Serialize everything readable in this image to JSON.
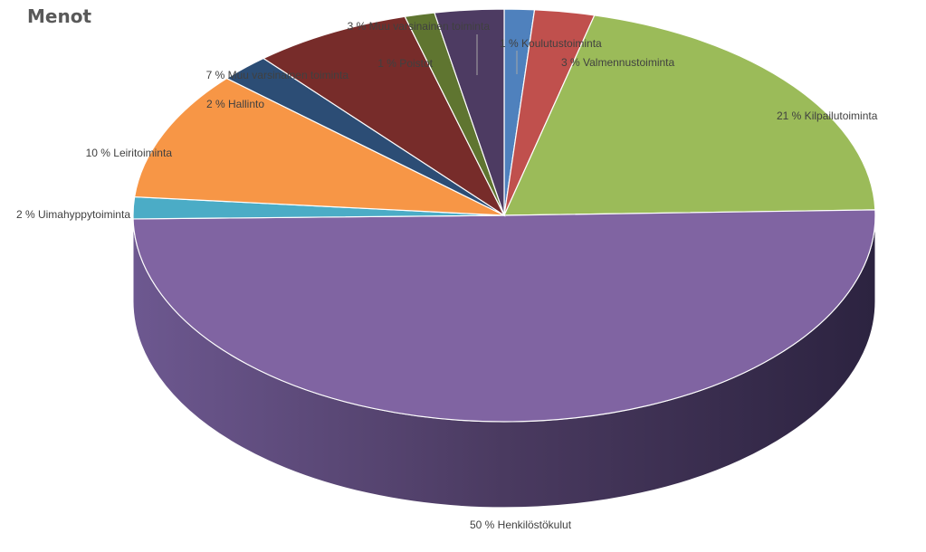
{
  "chart_data": {
    "type": "pie",
    "title": "Menot",
    "style": "3d",
    "slices": [
      {
        "label": "1 % Koulutustoiminta",
        "value": 1.3,
        "color": "#4f81bd"
      },
      {
        "label": "3 % Valmennustoiminta",
        "value": 2.6,
        "color": "#c0504d"
      },
      {
        "label": "21 % Kilpailutoiminta",
        "value": 20.6,
        "color": "#9bbb59"
      },
      {
        "label": "50 % Henkilöstökulut",
        "value": 50.0,
        "color": "#8064a2"
      },
      {
        "label": "2 % Uimahyppytoiminta",
        "value": 1.7,
        "color": "#4bacc6"
      },
      {
        "label": "10 % Leiritoiminta",
        "value": 10.1,
        "color": "#f79646"
      },
      {
        "label": "2 % Hallinto",
        "value": 2.2,
        "color": "#2c4d75"
      },
      {
        "label": "7 % Muu varsinainen toiminta",
        "value": 6.9,
        "color": "#772c2a"
      },
      {
        "label": "1 % Poistot",
        "value": 1.3,
        "color": "#5f7530"
      },
      {
        "label": "3 % Muu varsinainen toiminta",
        "value": 3.0,
        "color": "#4d3b62"
      }
    ]
  }
}
